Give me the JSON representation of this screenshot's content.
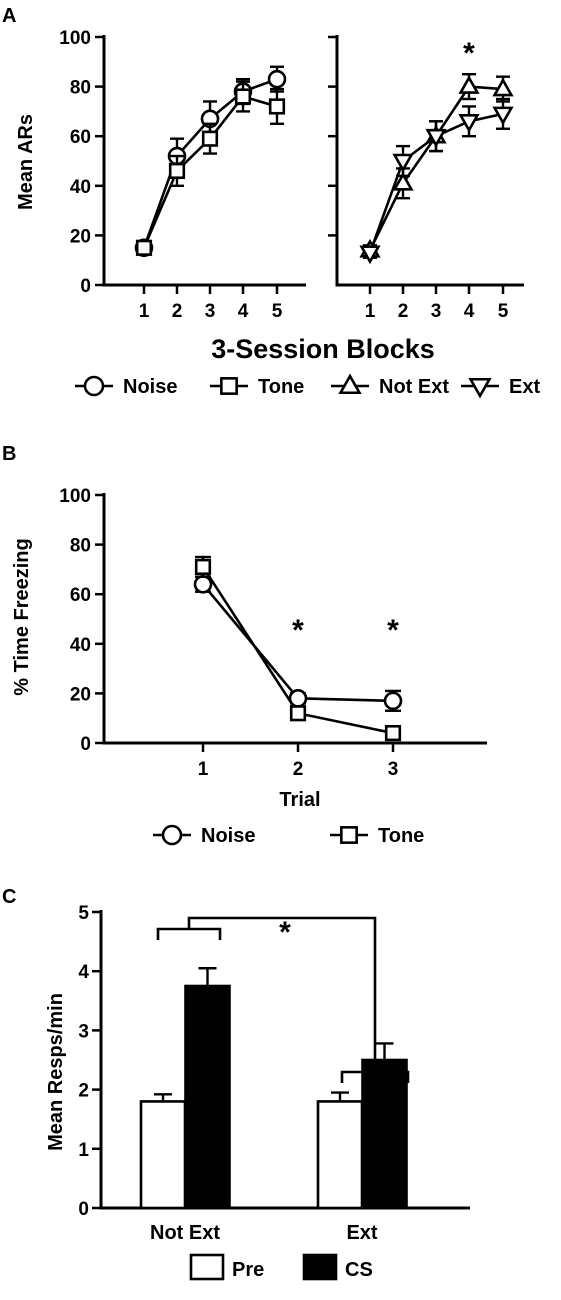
{
  "chart_data": [
    {
      "panel": "A",
      "type": "line",
      "subpanel": "left",
      "x": [
        1,
        2,
        3,
        4,
        5
      ],
      "ylabel": "Mean ARs",
      "xlabel": "3-Session Blocks",
      "ylim": [
        0,
        100
      ],
      "yticks": [
        0,
        20,
        40,
        60,
        80,
        100
      ],
      "xticks": [
        1,
        2,
        3,
        4,
        5
      ],
      "series": [
        {
          "name": "Noise",
          "marker": "circle",
          "values": [
            15,
            52,
            67,
            78,
            83
          ],
          "errors": [
            2,
            7,
            7,
            5,
            5
          ]
        },
        {
          "name": "Tone",
          "marker": "square",
          "values": [
            15,
            46,
            59,
            76,
            72
          ],
          "errors": [
            2,
            6,
            6,
            6,
            7
          ]
        }
      ]
    },
    {
      "panel": "A",
      "type": "line",
      "subpanel": "right",
      "x": [
        1,
        2,
        3,
        4,
        5
      ],
      "ylim": [
        0,
        100
      ],
      "xticks": [
        1,
        2,
        3,
        4,
        5
      ],
      "annotations": [
        {
          "text": "*",
          "x": 4
        }
      ],
      "series": [
        {
          "name": "Not Ext",
          "marker": "triangle-up",
          "values": [
            14,
            41,
            60,
            80,
            79
          ],
          "errors": [
            2,
            6,
            6,
            5,
            5
          ]
        },
        {
          "name": "Ext",
          "marker": "triangle-down",
          "values": [
            13,
            50,
            60,
            66,
            69
          ],
          "errors": [
            2,
            6,
            6,
            6,
            6
          ]
        }
      ]
    },
    {
      "panel": "B",
      "type": "line",
      "x": [
        1,
        2,
        3
      ],
      "xlabel": "Trial",
      "ylabel": "% Time Freezing",
      "ylim": [
        0,
        100
      ],
      "yticks": [
        0,
        20,
        40,
        60,
        80,
        100
      ],
      "xticks": [
        1,
        2,
        3
      ],
      "annotations": [
        {
          "text": "*",
          "x": 2
        },
        {
          "text": "*",
          "x": 3
        }
      ],
      "series": [
        {
          "name": "Noise",
          "marker": "circle",
          "values": [
            64,
            18,
            17
          ],
          "errors": [
            3,
            2,
            4
          ]
        },
        {
          "name": "Tone",
          "marker": "square",
          "values": [
            71,
            12,
            4
          ],
          "errors": [
            4,
            2,
            2
          ]
        }
      ]
    },
    {
      "panel": "C",
      "type": "bar",
      "categories": [
        "Not Ext",
        "Ext"
      ],
      "ylabel": "Mean Resps/min",
      "ylim": [
        0,
        5
      ],
      "yticks": [
        0,
        1,
        2,
        3,
        4,
        5
      ],
      "annotations": [
        {
          "text": "*"
        }
      ],
      "series": [
        {
          "name": "Pre",
          "color": "#ffffff",
          "values": [
            1.8,
            1.8
          ],
          "errors": [
            0.12,
            0.15
          ]
        },
        {
          "name": "CS",
          "color": "#000000",
          "values": [
            3.75,
            2.5
          ],
          "errors": [
            0.3,
            0.28
          ]
        }
      ]
    }
  ]
}
